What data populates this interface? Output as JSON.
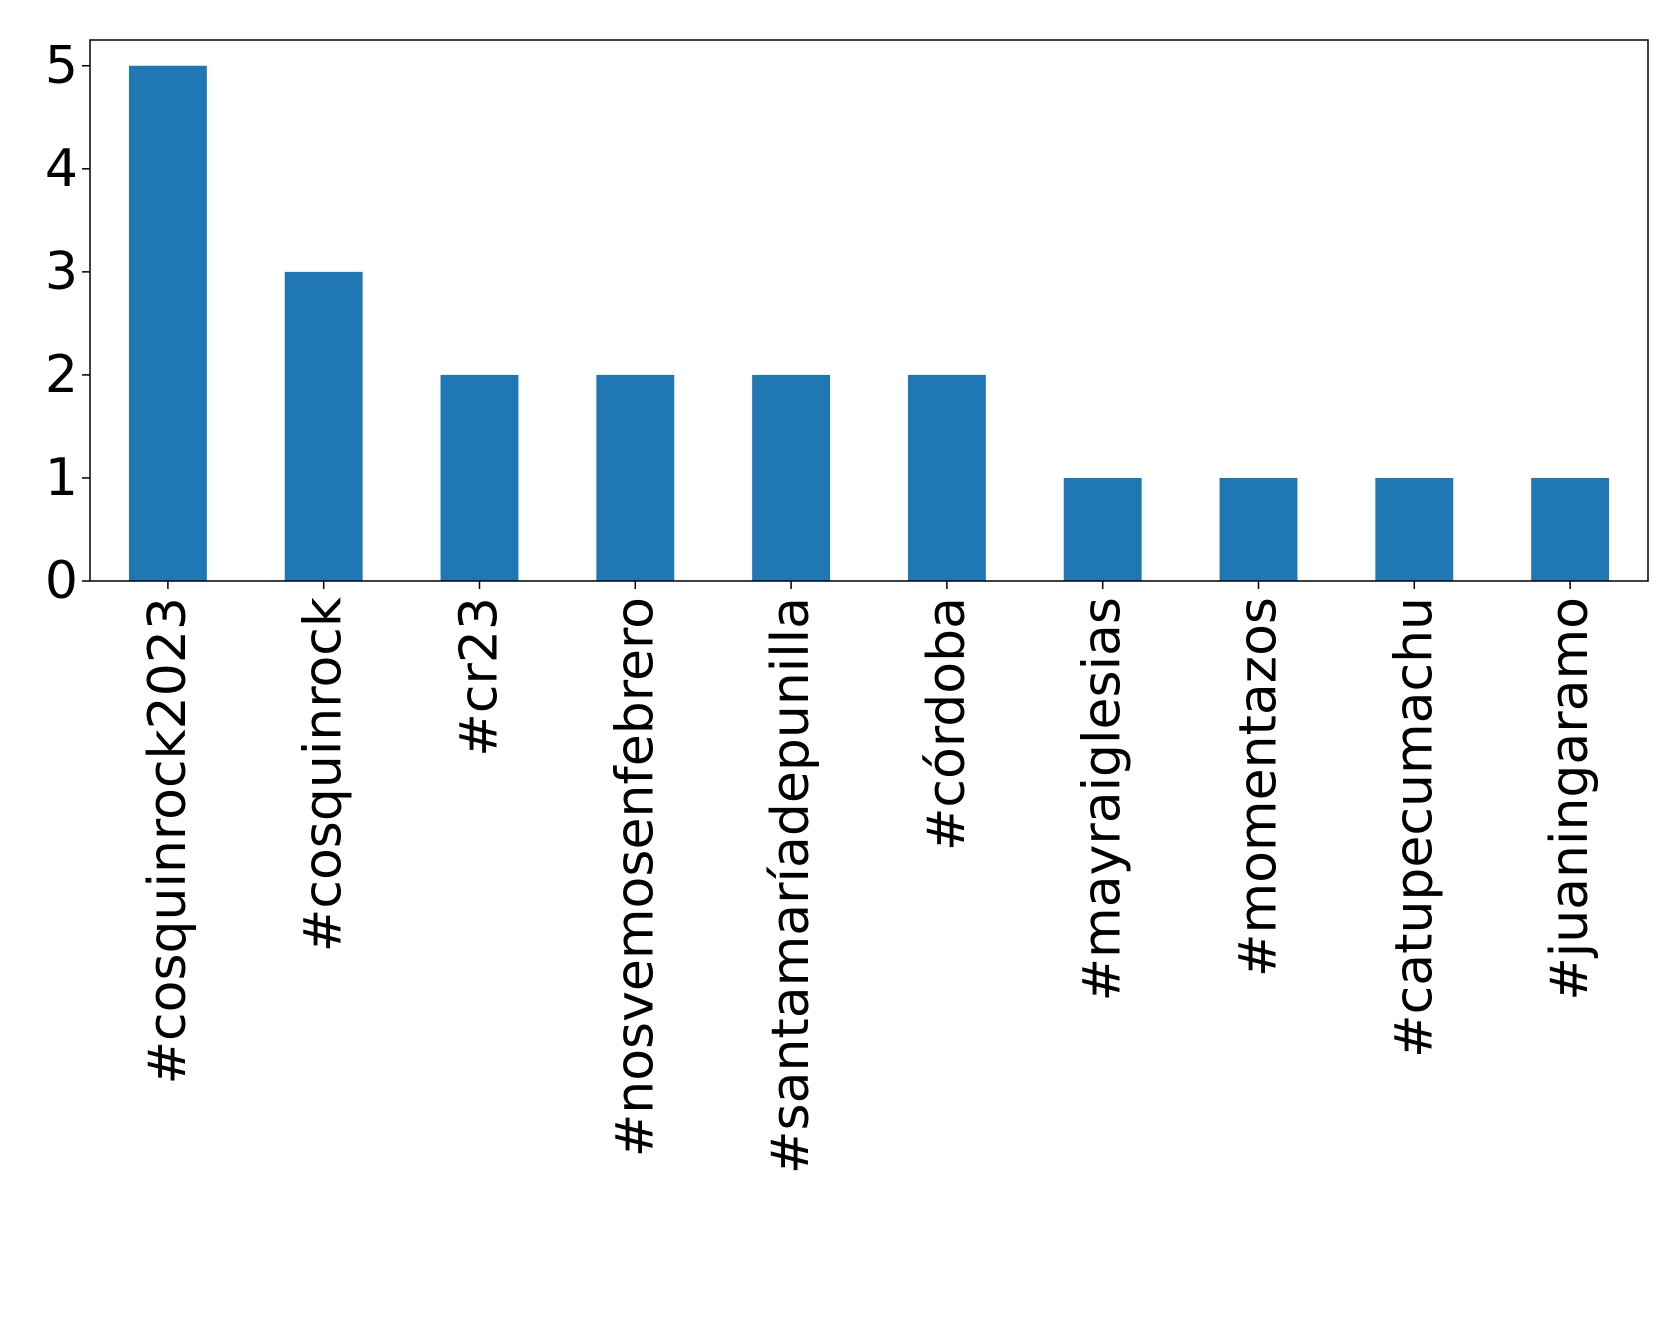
{
  "chart_data": {
    "type": "bar",
    "categories": [
      "#cosquinrock2023",
      "#cosquinrock",
      "#cr23",
      "#nosvemosenfebrero",
      "#santamaríadepunilla",
      "#córdoba",
      "#mayraiglesias",
      "#momentazos",
      "#catupecumachu",
      "#juaningaramo"
    ],
    "values": [
      5,
      3,
      2,
      2,
      2,
      2,
      1,
      1,
      1,
      1
    ],
    "color": "#1f77b4",
    "ylim": [
      0,
      5.25
    ],
    "yticks": [
      0,
      1,
      2,
      3,
      4,
      5
    ],
    "grid": false
  }
}
